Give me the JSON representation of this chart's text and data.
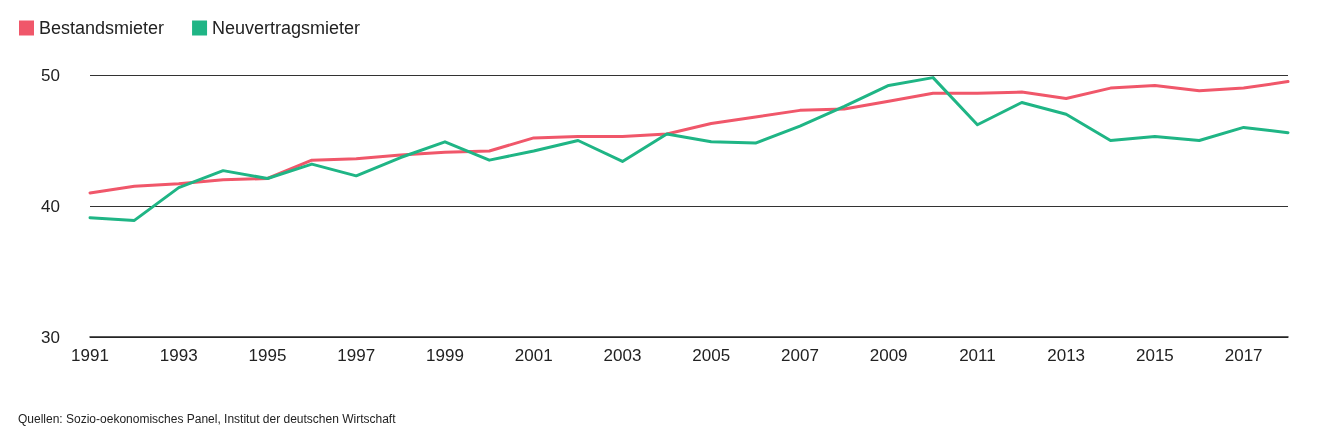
{
  "chart_data": {
    "type": "line",
    "categories": [
      "1991",
      null,
      "1993",
      null,
      "1995",
      null,
      "1997",
      null,
      "1999",
      null,
      "2001",
      null,
      "2003",
      null,
      "2005",
      null,
      "2007",
      null,
      "2009",
      null,
      "2011",
      null,
      "2013",
      null,
      "2015",
      null,
      "2017",
      null
    ],
    "series": [
      {
        "name": "Bestandsmieter",
        "color": "#f0576a",
        "values": [
          41.0,
          41.5,
          41.7,
          42.0,
          42.1,
          43.5,
          43.6,
          43.9,
          44.1,
          44.2,
          45.2,
          45.3,
          45.3,
          45.5,
          46.3,
          46.8,
          47.3,
          47.4,
          48.0,
          48.6,
          48.6,
          48.7,
          48.2,
          49.0,
          49.2,
          48.8,
          49.0,
          49.5
        ]
      },
      {
        "name": "Neuvertragsmieter",
        "color": "#1fb585",
        "values": [
          39.1,
          38.9,
          41.4,
          42.7,
          42.1,
          43.2,
          42.3,
          43.7,
          44.9,
          43.5,
          44.2,
          45.0,
          43.4,
          45.5,
          44.9,
          44.8,
          46.1,
          47.6,
          49.2,
          49.8,
          46.2,
          47.9,
          47.0,
          45.0,
          45.3,
          45.0,
          46.0,
          45.6
        ]
      }
    ],
    "ylim": [
      30,
      50
    ],
    "yticks": [
      30,
      40,
      50
    ],
    "grid": "y",
    "legend": "top left",
    "marker": "none",
    "line_style": "solid",
    "annotations": [
      "Quellen: Sozio-oekonomisches Panel, Institut der deutschen Wirtschaft"
    ]
  }
}
